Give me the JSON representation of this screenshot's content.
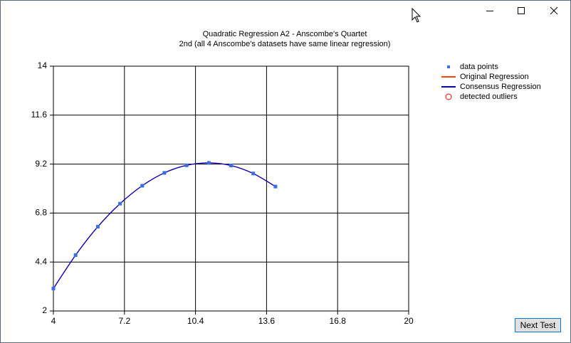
{
  "chart_data": {
    "type": "line",
    "title": "Quadratic Regression A2 - Anscombe's Quartet",
    "subtitle": "2nd (all 4 Anscombe's datasets have same linear regression)",
    "x": [
      4,
      5,
      6,
      7,
      8,
      9,
      10,
      11,
      12,
      13,
      14
    ],
    "series": [
      {
        "name": "data points",
        "color": "#3b6fe0",
        "style": "markers",
        "values": [
          3.1,
          4.74,
          6.13,
          7.26,
          8.14,
          8.77,
          9.14,
          9.26,
          9.13,
          8.74,
          8.1
        ]
      },
      {
        "name": "Original Regression",
        "color": "#ff4500",
        "style": "line",
        "values": [
          3.1,
          4.74,
          6.13,
          7.26,
          8.14,
          8.77,
          9.14,
          9.26,
          9.13,
          8.74,
          8.1
        ]
      },
      {
        "name": "Consensus Regression",
        "color": "#0000cd",
        "style": "line",
        "values": [
          3.1,
          4.74,
          6.13,
          7.26,
          8.14,
          8.77,
          9.14,
          9.26,
          9.13,
          8.74,
          8.1
        ]
      },
      {
        "name": "detected outliers",
        "color": "#ff0000",
        "style": "circles"
      }
    ],
    "xlim": [
      4,
      20
    ],
    "xticks": [
      4,
      7.2,
      10.4,
      13.6,
      16.8,
      20
    ],
    "ylim": [
      2,
      14
    ],
    "yticks": [
      2,
      4.4,
      6.8,
      9.2,
      11.6,
      14
    ],
    "grid": true,
    "legend": "top-right"
  },
  "button": "Next Test"
}
